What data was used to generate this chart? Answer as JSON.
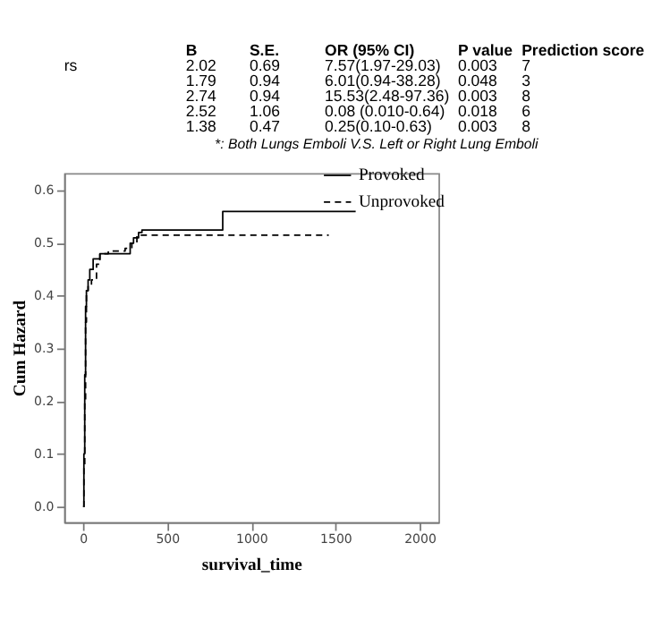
{
  "chart_data": [
    {
      "type": "other",
      "categories": [
        null,
        "B",
        "S.E.",
        "OR (95% CI)",
        "P value",
        "Prediction score"
      ],
      "cell_labels": [
        [
          "rs",
          "2.02",
          "0.69",
          "7.57(1.97-29.03)",
          "0.003",
          "7"
        ],
        [
          null,
          "1.79",
          "0.94",
          "6.01(0.94-38.28)",
          "0.048",
          "3"
        ],
        [
          null,
          "2.74",
          "0.94",
          "15.53(2.48-97.36)",
          "0.003",
          "8"
        ],
        [
          null,
          "2.52",
          "1.06",
          "0.08 (0.010-0.64)",
          "0.018",
          "6"
        ],
        [
          null,
          "1.38",
          "0.47",
          "0.25(0.10-0.63)",
          "0.003",
          "8"
        ]
      ],
      "annotations": [
        "*: Both Lungs Emboli V.S. Left or Right Lung Emboli"
      ]
    },
    {
      "type": "step",
      "xlabel": "survival_time",
      "ylabel": "Cum Hazard",
      "xlim": [
        -112,
        2112
      ],
      "ylim": [
        -0.03,
        0.633
      ],
      "xticks": [
        0,
        500,
        1000,
        1500,
        2000
      ],
      "yticks": [
        {
          "value": 0,
          "label": "0.0"
        },
        {
          "value": 0.1,
          "label": "0.1"
        },
        {
          "value": 0.2,
          "label": "0.2"
        },
        {
          "value": 0.3,
          "label": "0.3"
        },
        {
          "value": 0.4,
          "label": "0.4"
        },
        {
          "value": 0.5,
          "label": "0.5"
        },
        {
          "value": 0.6,
          "label": "0.6"
        }
      ],
      "grid": false,
      "legend": "right",
      "series": [
        {
          "name": "Provoked",
          "color": "#000000",
          "line_style": "solid",
          "x": [
            0,
            5,
            10,
            15,
            20,
            30,
            40,
            60,
            100,
            250,
            280,
            300,
            330,
            350,
            830,
            1620
          ],
          "values": [
            0,
            0.1,
            0.25,
            0.38,
            0.41,
            0.43,
            0.45,
            0.47,
            0.48,
            0.48,
            0.5,
            0.51,
            0.52,
            0.525,
            0.56,
            0.56
          ]
        },
        {
          "name": "Unprovoked",
          "color": "#000000",
          "line_style": "dashed",
          "x": [
            0,
            5,
            10,
            15,
            20,
            30,
            50,
            80,
            100,
            150,
            250,
            290,
            320,
            350,
            1460
          ],
          "values": [
            0,
            0.08,
            0.2,
            0.35,
            0.41,
            0.42,
            0.43,
            0.46,
            0.48,
            0.485,
            0.49,
            0.5,
            0.515,
            0.515,
            0.515
          ]
        }
      ]
    }
  ]
}
